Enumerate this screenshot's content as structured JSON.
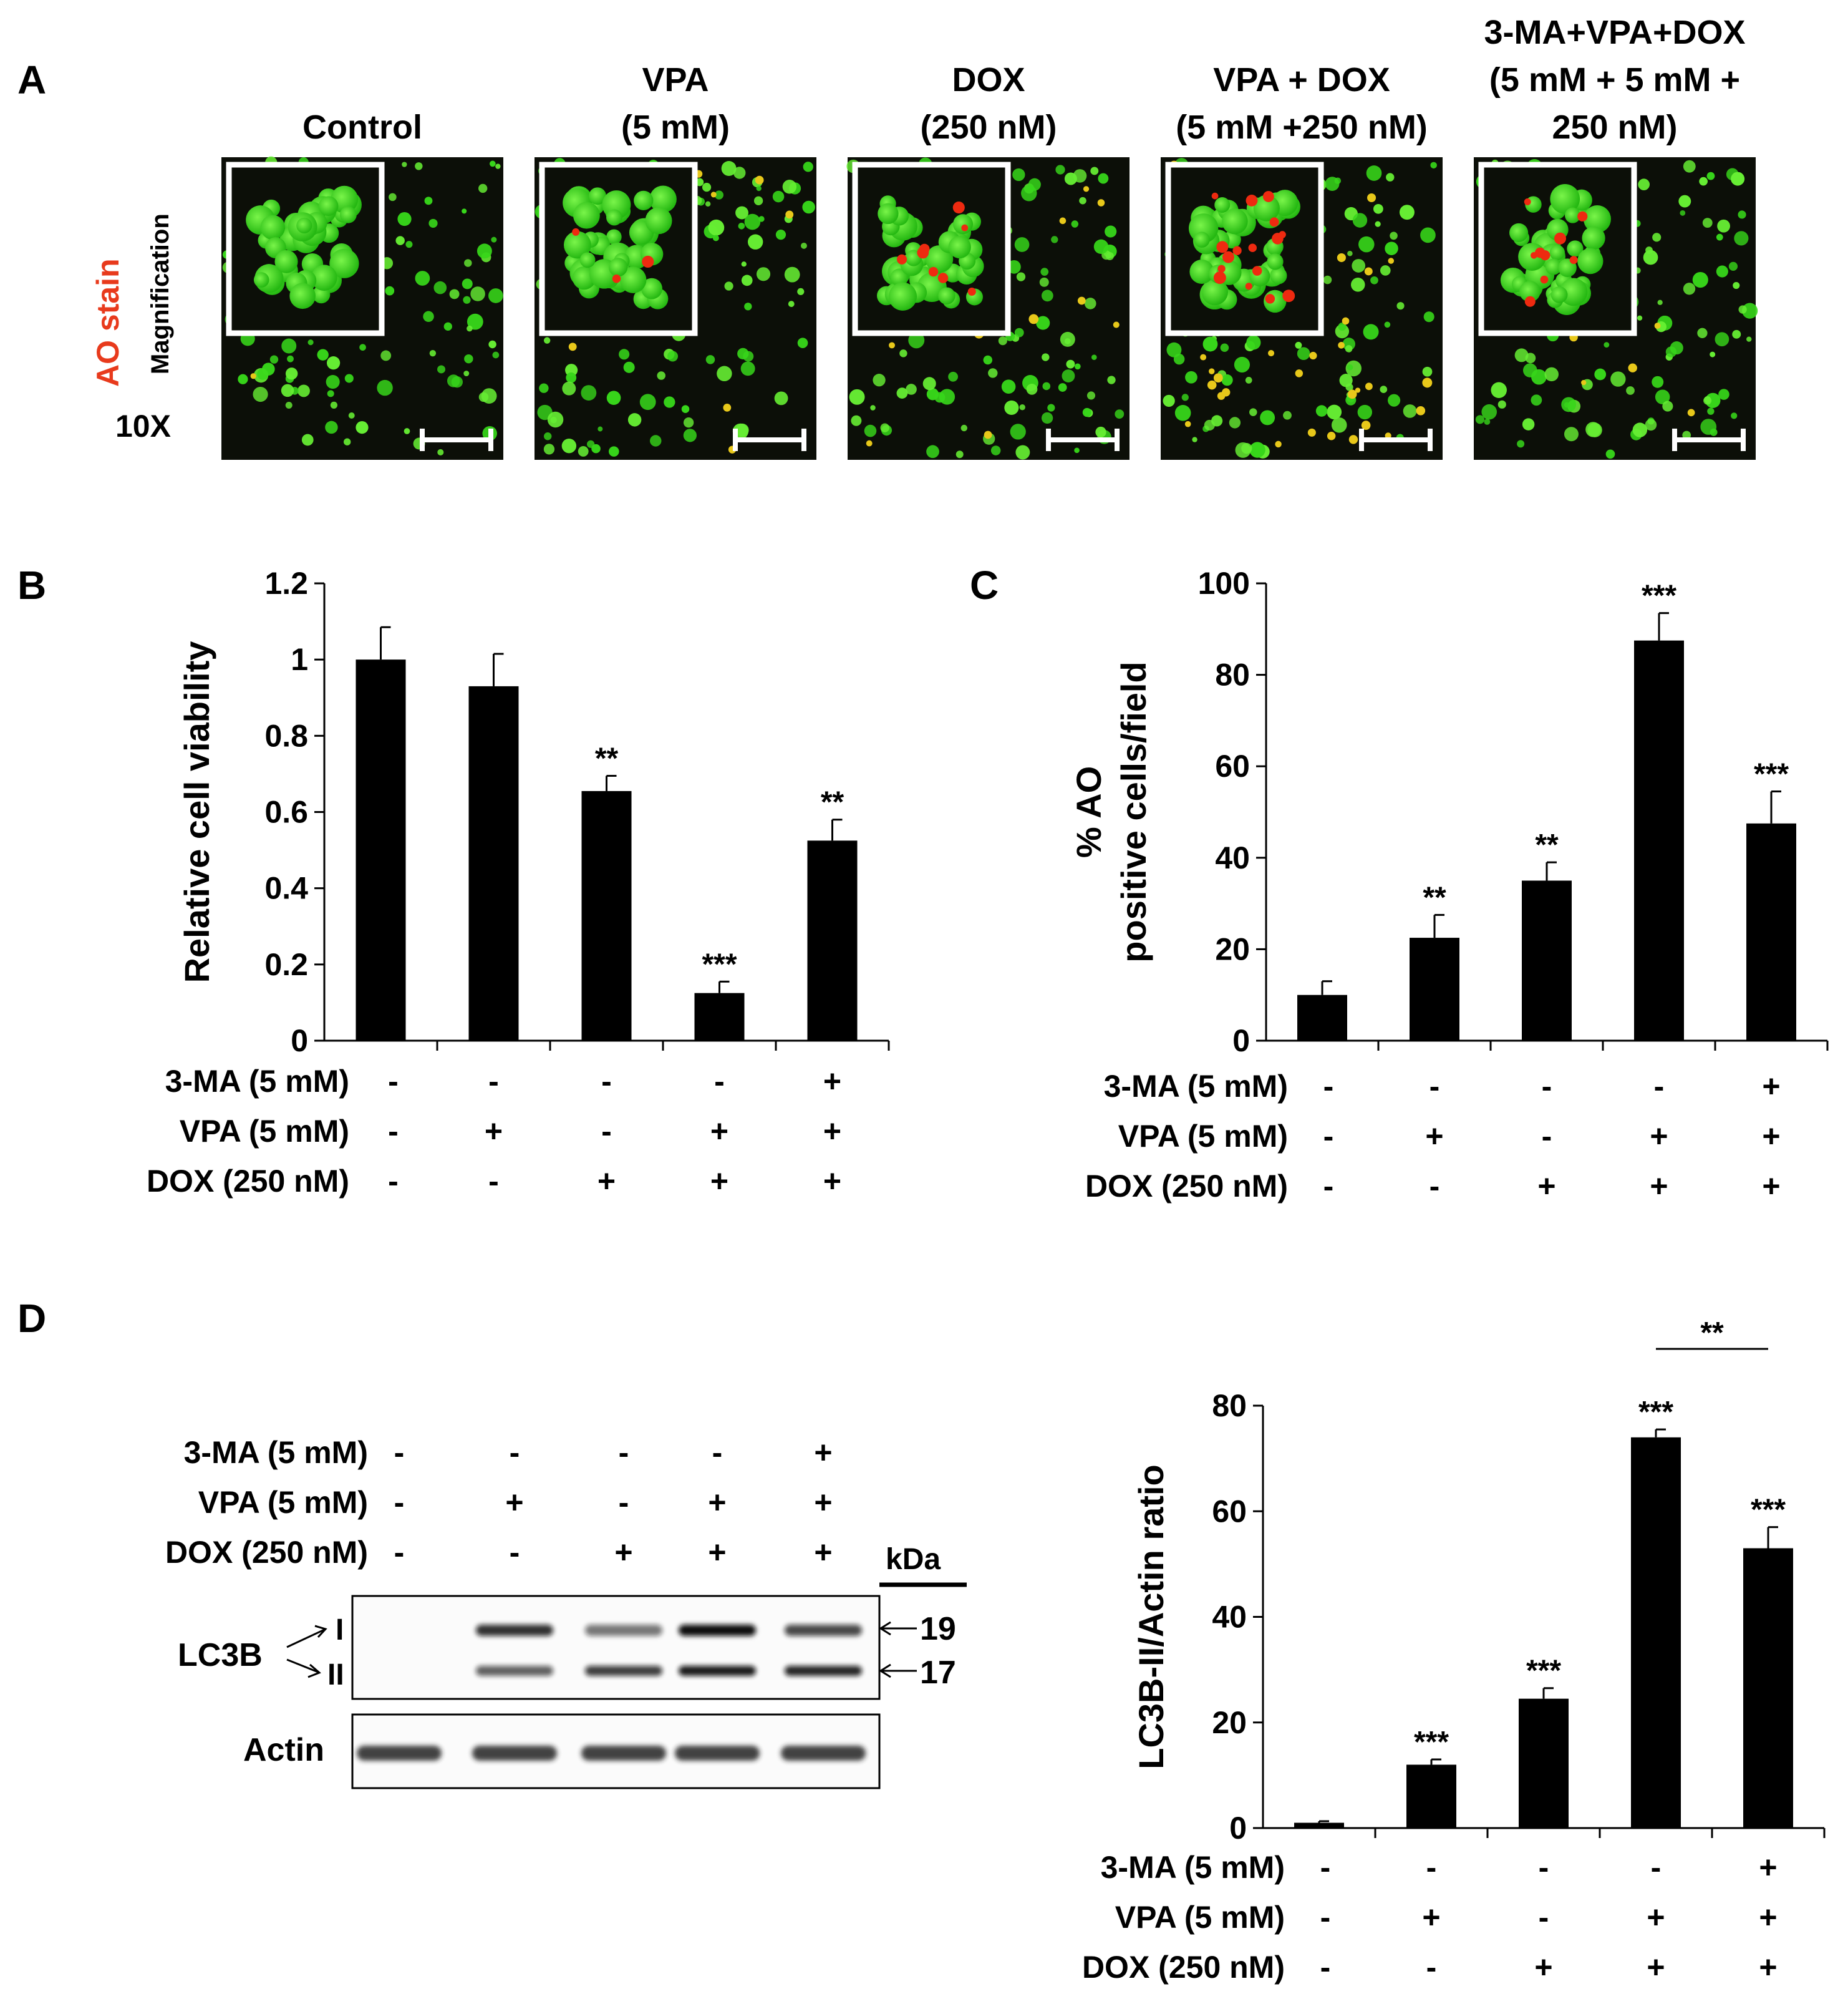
{
  "panels": {
    "A": {
      "letter": "A",
      "side": {
        "stain": "AO stain",
        "magnification": "Magnification",
        "zoom": "10X"
      },
      "conditions": [
        {
          "lines": [
            "Control"
          ],
          "red_dots": 0,
          "yellow_dots": 2
        },
        {
          "lines": [
            "VPA",
            "(5 mM)"
          ],
          "red_dots": 3,
          "yellow_dots": 8
        },
        {
          "lines": [
            "DOX",
            "(250 nM)"
          ],
          "red_dots": 8,
          "yellow_dots": 14
        },
        {
          "lines": [
            "VPA + DOX",
            "(5 mM +250 nM)"
          ],
          "red_dots": 16,
          "yellow_dots": 40
        },
        {
          "lines": [
            "3-MA+VPA+DOX",
            "(5 mM + 5 mM +",
            "250 nM)"
          ],
          "red_dots": 9,
          "yellow_dots": 6
        }
      ],
      "colors": {
        "bg": "#0c0f08",
        "cell": "#37d61a",
        "cell_light": "#66ee33",
        "red": "#ee2a10",
        "yellow": "#e8c81a",
        "stain_label": "#e83a1c"
      }
    },
    "B": {
      "letter": "B"
    },
    "C": {
      "letter": "C"
    },
    "D": {
      "letter": "D",
      "blot": {
        "header": [
          "3-MA (5 mM)",
          "VPA (5 mM)",
          "DOX (250 nM)"
        ],
        "header_signs": [
          [
            "-",
            "-",
            "-",
            "-",
            "+"
          ],
          [
            "-",
            "+",
            "-",
            "+",
            "+"
          ],
          [
            "-",
            "-",
            "+",
            "+",
            "+"
          ]
        ],
        "kda_label": "kDa",
        "lc3b_label": "LC3B",
        "band_I": "I",
        "band_II": "II",
        "kda_19": "19",
        "kda_17": "17",
        "actin_label": "Actin",
        "band_I_intensity": [
          0.0,
          0.85,
          0.55,
          1.0,
          0.75
        ],
        "band_II_intensity": [
          0.0,
          0.65,
          0.8,
          0.95,
          0.9
        ],
        "actin_intensity": [
          0.85,
          0.85,
          0.85,
          0.85,
          0.85
        ]
      }
    }
  },
  "chart_data": [
    {
      "panel": "B",
      "type": "bar",
      "categories": [
        "1",
        "2",
        "3",
        "4",
        "5"
      ],
      "values": [
        1.0,
        0.93,
        0.655,
        0.125,
        0.525
      ],
      "errors": [
        0.085,
        0.085,
        0.04,
        0.03,
        0.055
      ],
      "annotations": [
        "",
        "",
        "**",
        "***",
        "**"
      ],
      "ylabel": "Relative cell viability",
      "ylim": [
        0,
        1.2
      ],
      "yticks": [
        "0",
        "0.2",
        "0.4",
        "0.6",
        "0.8",
        "1",
        "1.2"
      ],
      "conditions": [
        {
          "label": "3-MA (5 mM)",
          "signs": [
            "-",
            "-",
            "-",
            "-",
            "+"
          ]
        },
        {
          "label": "VPA (5 mM)",
          "signs": [
            "-",
            "+",
            "-",
            "+",
            "+"
          ]
        },
        {
          "label": "DOX (250 nM)",
          "signs": [
            "-",
            "-",
            "+",
            "+",
            "+"
          ]
        }
      ],
      "grid": false,
      "bar_color": "#000000"
    },
    {
      "panel": "C",
      "type": "bar",
      "categories": [
        "1",
        "2",
        "3",
        "4",
        "5"
      ],
      "values": [
        10,
        22.5,
        35,
        87.5,
        47.5
      ],
      "errors": [
        3,
        5,
        4,
        6,
        7
      ],
      "annotations": [
        "",
        "**",
        "**",
        "***",
        "***"
      ],
      "ylabel": [
        "% AO",
        "positive cells/field"
      ],
      "ylim": [
        0,
        100
      ],
      "yticks": [
        "0",
        "20",
        "40",
        "60",
        "80",
        "100"
      ],
      "conditions": [
        {
          "label": "3-MA (5 mM)",
          "signs": [
            "-",
            "-",
            "-",
            "-",
            "+"
          ]
        },
        {
          "label": "VPA (5 mM)",
          "signs": [
            "-",
            "+",
            "-",
            "+",
            "+"
          ]
        },
        {
          "label": "DOX (250 nM)",
          "signs": [
            "-",
            "-",
            "+",
            "+",
            "+"
          ]
        }
      ],
      "grid": false,
      "bar_color": "#000000"
    },
    {
      "panel": "D",
      "type": "bar",
      "categories": [
        "1",
        "2",
        "3",
        "4",
        "5"
      ],
      "values": [
        1,
        12,
        24.5,
        74,
        53
      ],
      "errors": [
        0.3,
        1,
        2,
        1.5,
        4
      ],
      "annotations": [
        "",
        "***",
        "***",
        "***",
        "***"
      ],
      "bracket": {
        "from": 3,
        "to": 4,
        "label": "**"
      },
      "ylabel": "LC3B-II/Actin ratio",
      "ylim": [
        0,
        80
      ],
      "yticks": [
        "0",
        "20",
        "40",
        "60",
        "80"
      ],
      "conditions": [
        {
          "label": "3-MA (5 mM)",
          "signs": [
            "-",
            "-",
            "-",
            "-",
            "+"
          ]
        },
        {
          "label": "VPA (5 mM)",
          "signs": [
            "-",
            "+",
            "-",
            "+",
            "+"
          ]
        },
        {
          "label": "DOX (250 nM)",
          "signs": [
            "-",
            "-",
            "+",
            "+",
            "+"
          ]
        }
      ],
      "grid": false,
      "bar_color": "#000000"
    }
  ]
}
